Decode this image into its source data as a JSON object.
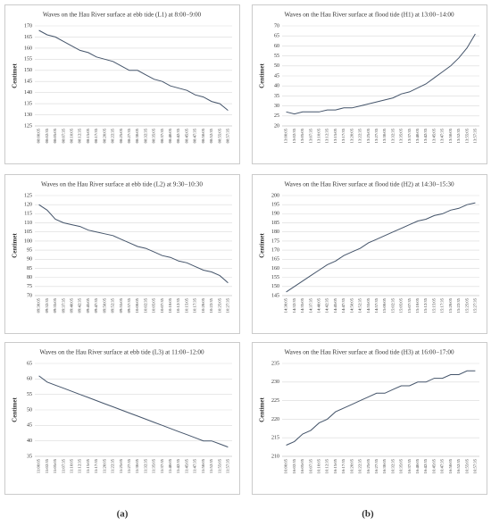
{
  "panel_labels": [
    "(a)",
    "(b)"
  ],
  "chart_data": [
    {
      "type": "line",
      "title": "Waves on the Hau River surface at ebb tide (L1) at 8:00−9:00",
      "y_label": "Centimet",
      "categories": [
        "08:00:05",
        "08:02:35",
        "08:05:05",
        "08:07:35",
        "08:10:05",
        "08:12:35",
        "08:15:05",
        "08:17:35",
        "08:20:05",
        "08:22:35",
        "08:25:05",
        "08:27:35",
        "08:30:05",
        "08:32:35",
        "08:35:05",
        "08:37:35",
        "08:40:05",
        "08:42:35",
        "08:45:05",
        "08:47:35",
        "08:50:05",
        "08:52:35",
        "08:55:05",
        "08:57:35"
      ],
      "values": [
        168,
        166,
        165,
        163,
        161,
        159,
        158,
        156,
        155,
        154,
        152,
        150,
        150,
        148,
        146,
        145,
        143,
        142,
        141,
        139,
        138,
        136,
        135,
        132
      ],
      "color": "#44546a",
      "ylim": [
        125,
        170
      ],
      "yticks": [
        125,
        130,
        135,
        140,
        145,
        150,
        155,
        160,
        165,
        170
      ],
      "grid": true
    },
    {
      "type": "line",
      "title": "Waves on the Hau River surface at ebb tide (L2) at 9:30−10:30",
      "y_label": "Centimet",
      "categories": [
        "09:30:05",
        "09:32:35",
        "09:35:05",
        "09:37:35",
        "09:40:05",
        "09:42:35",
        "09:45:05",
        "09:47:35",
        "09:50:05",
        "09:52:35",
        "09:55:05",
        "09:57:35",
        "10:00:05",
        "10:02:35",
        "10:05:05",
        "10:07:35",
        "10:10:05",
        "10:12:35",
        "10:15:05",
        "10:17:35",
        "10:20:05",
        "10:22:35",
        "10:25:05",
        "10:27:35"
      ],
      "values": [
        120,
        117,
        112,
        110,
        109,
        108,
        106,
        105,
        104,
        103,
        101,
        99,
        97,
        96,
        94,
        92,
        91,
        89,
        88,
        86,
        84,
        83,
        81,
        77
      ],
      "color": "#44546a",
      "ylim": [
        70,
        125
      ],
      "yticks": [
        70,
        75,
        80,
        85,
        90,
        95,
        100,
        105,
        110,
        115,
        120,
        125
      ],
      "grid": true
    },
    {
      "type": "line",
      "title": "Waves on the Hau River surface at ebb tide (L3) at 11:00−12:00",
      "y_label": "Centimet",
      "categories": [
        "11:00:05",
        "11:02:35",
        "11:05:05",
        "11:07:35",
        "11:10:05",
        "11:12:35",
        "11:15:05",
        "11:17:35",
        "11:20:05",
        "11:22:35",
        "11:25:05",
        "11:27:35",
        "11:30:05",
        "11:32:35",
        "11:35:05",
        "11:37:35",
        "11:40:05",
        "11:42:35",
        "11:45:05",
        "11:47:35",
        "11:50:05",
        "11:52:35",
        "11:55:05",
        "11:57:35"
      ],
      "values": [
        61,
        59,
        58,
        57,
        56,
        55,
        54,
        53,
        52,
        51,
        50,
        49,
        48,
        47,
        46,
        45,
        44,
        43,
        42,
        41,
        40,
        40,
        39,
        38
      ],
      "color": "#44546a",
      "ylim": [
        35,
        65
      ],
      "yticks": [
        35,
        40,
        45,
        50,
        55,
        60,
        65
      ],
      "grid": true
    },
    {
      "type": "line",
      "title": "Waves on the Hau River surface at flood tide (H1) at 13:00−14:00",
      "y_label": "Centimet",
      "categories": [
        "13:00:05",
        "13:02:35",
        "13:05:05",
        "13:07:35",
        "13:10:05",
        "13:12:35",
        "13:15:05",
        "13:17:35",
        "13:20:05",
        "13:22:35",
        "13:25:05",
        "13:27:35",
        "13:30:05",
        "13:32:35",
        "13:35:05",
        "13:37:35",
        "13:40:05",
        "13:42:35",
        "13:45:05",
        "13:47:35",
        "13:50:05",
        "13:52:35",
        "13:55:05",
        "13:57:35"
      ],
      "values": [
        27,
        26,
        27,
        27,
        27,
        28,
        28,
        29,
        29,
        30,
        31,
        32,
        33,
        34,
        36,
        37,
        39,
        41,
        44,
        47,
        50,
        54,
        59,
        66
      ],
      "color": "#44546a",
      "ylim": [
        20,
        70
      ],
      "yticks": [
        20,
        25,
        30,
        35,
        40,
        45,
        50,
        55,
        60,
        65,
        70
      ],
      "grid": true
    },
    {
      "type": "line",
      "title": "Waves on the Hau River surface at flood tide (H2) at 14:30−15:30",
      "y_label": "Centimet",
      "categories": [
        "14:30:05",
        "14:32:35",
        "14:35:05",
        "14:37:35",
        "14:40:05",
        "14:42:35",
        "14:45:05",
        "14:47:35",
        "14:50:05",
        "14:52:35",
        "14:55:05",
        "14:57:35",
        "15:00:05",
        "15:02:35",
        "15:05:05",
        "15:07:35",
        "15:10:05",
        "15:12:35",
        "15:15:05",
        "15:17:35",
        "15:20:05",
        "15:22:35",
        "15:25:05",
        "15:27:35"
      ],
      "values": [
        147,
        150,
        153,
        156,
        159,
        162,
        164,
        167,
        169,
        171,
        174,
        176,
        178,
        180,
        182,
        184,
        186,
        187,
        189,
        190,
        192,
        193,
        195,
        196
      ],
      "color": "#44546a",
      "ylim": [
        145,
        200
      ],
      "yticks": [
        145,
        150,
        155,
        160,
        165,
        170,
        175,
        180,
        185,
        190,
        195,
        200
      ],
      "grid": true
    },
    {
      "type": "line",
      "title": "Waves on the Hau River surface at flood tide (H3) at 16:00−17:00",
      "y_label": "Centimet",
      "categories": [
        "16:00:05",
        "16:02:35",
        "16:05:05",
        "16:07:35",
        "16:10:05",
        "16:12:35",
        "16:15:05",
        "16:17:35",
        "16:20:05",
        "16:22:35",
        "16:25:05",
        "16:27:35",
        "16:30:05",
        "16:32:35",
        "16:35:05",
        "16:37:35",
        "16:40:05",
        "16:42:35",
        "16:45:05",
        "16:47:35",
        "16:50:05",
        "16:52:35",
        "16:55:05",
        "16:57:35"
      ],
      "values": [
        213,
        214,
        216,
        217,
        219,
        220,
        222,
        223,
        224,
        225,
        226,
        227,
        227,
        228,
        229,
        229,
        230,
        230,
        231,
        231,
        232,
        232,
        233,
        233
      ],
      "color": "#44546a",
      "ylim": [
        210,
        235
      ],
      "yticks": [
        210,
        215,
        220,
        225,
        230,
        235
      ],
      "grid": true
    }
  ]
}
